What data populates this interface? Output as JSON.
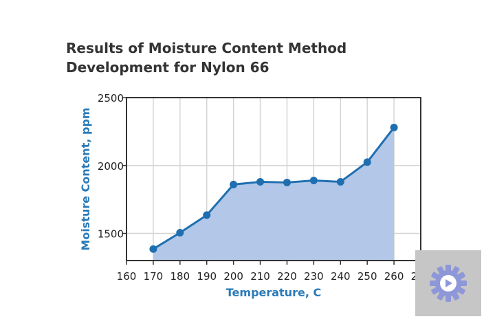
{
  "colors": {
    "accent": "#1f6fb0",
    "area_fill": "#b3c7e8",
    "marker": "#1f6fb0",
    "axis_label": "#2a7ab8",
    "grid": "#d5d5d5",
    "overlay_bg": "#c6c6c6",
    "overlay_gear": "#8e97d8"
  },
  "overlay": {
    "icon": "gear-play-icon"
  },
  "chart_data": {
    "type": "area",
    "title": "Results of Moisture Content Method Development for Nylon 66",
    "title_lines": [
      "Results of Moisture Content Method",
      "Development for Nylon 66"
    ],
    "xlabel": "Temperature, C",
    "ylabel": "Moisture Content, ppm",
    "xlim": [
      160,
      270
    ],
    "ylim": [
      1300,
      2500
    ],
    "x_ticks": [
      160,
      170,
      180,
      190,
      200,
      210,
      220,
      230,
      240,
      250,
      260,
      270
    ],
    "y_ticks": [
      1500,
      2000,
      2500
    ],
    "grid": true,
    "legend": "none",
    "x": [
      170,
      180,
      190,
      200,
      210,
      220,
      230,
      240,
      250,
      260
    ],
    "y": [
      1385,
      1505,
      1635,
      1860,
      1880,
      1875,
      1890,
      1880,
      2025,
      2280
    ]
  }
}
